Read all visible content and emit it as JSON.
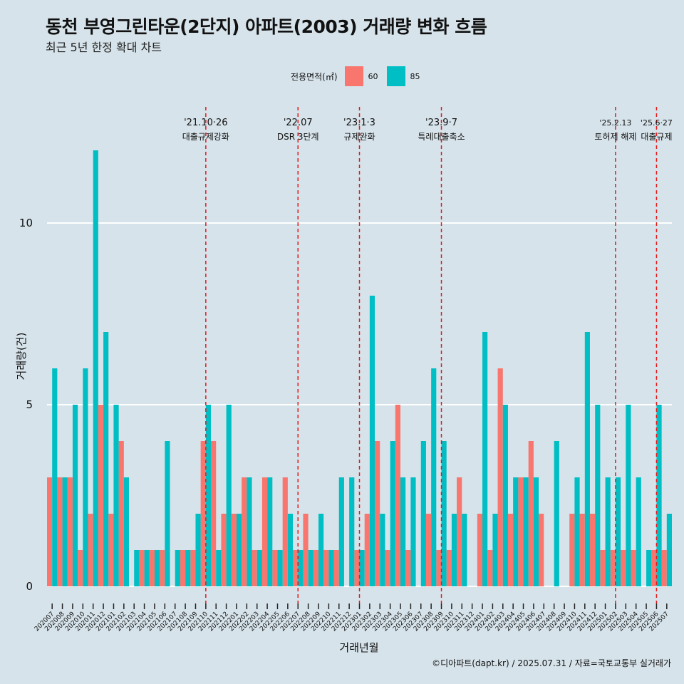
{
  "title": "동천 부영그린타운(2단지) 아파트(2003) 거래량 변화 흐름",
  "subtitle": "최근 5년 한정 확대 차트",
  "caption": "©디아파트(dapt.kr) / 2025.07.31 / 자료=국토교통부 실거래가",
  "legend": {
    "title": "전용면적(㎡)",
    "items": [
      {
        "label": "60",
        "color": "#F8766D"
      },
      {
        "label": "85",
        "color": "#00BFC4"
      }
    ]
  },
  "chart_data": {
    "type": "bar",
    "title": "동천 부영그린타운(2단지) 아파트(2003) 거래량 변화 흐름",
    "xlabel": "거래년월",
    "ylabel": "거래량(건)",
    "ylim": [
      0,
      12.5
    ],
    "yticks": [
      0,
      5,
      10
    ],
    "grid": true,
    "legend_position": "top",
    "categories": [
      "202007",
      "202008",
      "202009",
      "202010",
      "202011",
      "202012",
      "202101",
      "202102",
      "202103",
      "202104",
      "202105",
      "202106",
      "202107",
      "202108",
      "202109",
      "202110",
      "202111",
      "202112",
      "202201",
      "202202",
      "202203",
      "202204",
      "202205",
      "202206",
      "202207",
      "202208",
      "202209",
      "202210",
      "202211",
      "202212",
      "202301",
      "202302",
      "202303",
      "202304",
      "202305",
      "202306",
      "202307",
      "202308",
      "202309",
      "202310",
      "202311",
      "202312",
      "202401",
      "202402",
      "202403",
      "202404",
      "202405",
      "202406",
      "202407",
      "202408",
      "202409",
      "202410",
      "202411",
      "202412",
      "202501",
      "202502",
      "202503",
      "202504",
      "202505",
      "202506",
      "202507"
    ],
    "series": [
      {
        "name": "60",
        "color": "#F8766D",
        "values": [
          3,
          3,
          3,
          1,
          2,
          5,
          2,
          4,
          0,
          1,
          1,
          1,
          0,
          1,
          1,
          4,
          4,
          2,
          2,
          3,
          1,
          3,
          1,
          3,
          1,
          2,
          1,
          1,
          1,
          0,
          1,
          2,
          4,
          1,
          5,
          1,
          0,
          2,
          1,
          1,
          3,
          0,
          2,
          1,
          6,
          2,
          3,
          4,
          2,
          0,
          0,
          2,
          2,
          2,
          1,
          1,
          1,
          1,
          0,
          1,
          1
        ]
      },
      {
        "name": "85",
        "color": "#00BFC4",
        "values": [
          6,
          3,
          5,
          6,
          12,
          7,
          5,
          3,
          1,
          1,
          1,
          4,
          1,
          1,
          2,
          5,
          1,
          5,
          2,
          3,
          1,
          3,
          1,
          2,
          1,
          1,
          2,
          1,
          3,
          3,
          1,
          8,
          2,
          4,
          3,
          3,
          4,
          6,
          4,
          2,
          2,
          0,
          7,
          2,
          5,
          3,
          3,
          3,
          0,
          4,
          0,
          3,
          7,
          5,
          3,
          3,
          5,
          3,
          1,
          5,
          2
        ]
      }
    ],
    "events": [
      {
        "label1": "'21.10·26",
        "label2": "대출규제강화",
        "category": "202110"
      },
      {
        "label1": "'22.07",
        "label2": "DSR 3단계",
        "category": "202207"
      },
      {
        "label1": "'23.1·3",
        "label2": "규제완화",
        "category": "202301"
      },
      {
        "label1": "'23.9·7",
        "label2": "특례대출축소",
        "category": "202309"
      },
      {
        "label1": "'25.2.13",
        "label2": "토허제 해제",
        "category": "202502"
      },
      {
        "label1": "'25.6·27",
        "label2": "대출규제",
        "category": "202506"
      }
    ]
  }
}
